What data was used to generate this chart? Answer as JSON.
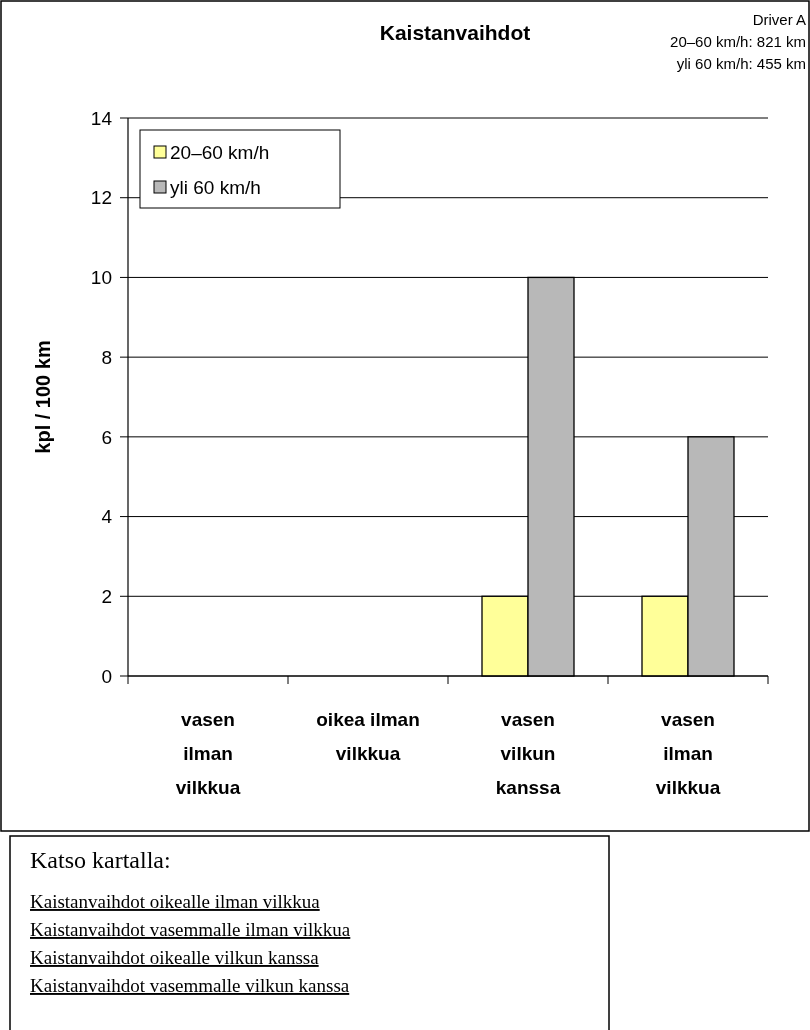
{
  "chart_data": {
    "type": "bar",
    "title": "Kaistanvaihdot",
    "ylabel": "kpl / 100 km",
    "categories": [
      "vasen ilman vilkkua",
      "oikea ilman vilkkua",
      "vasen vilkun kanssa",
      "vasen ilman vilkkua"
    ],
    "series": [
      {
        "name": "20–60 km/h",
        "color": "#ffff99",
        "values": [
          0,
          0,
          2,
          2
        ]
      },
      {
        "name": "yli 60 km/h",
        "color": "#b8b8b8",
        "values": [
          0,
          0,
          10,
          6
        ]
      }
    ],
    "ylim": [
      0,
      14
    ],
    "yticks": [
      0,
      2,
      4,
      6,
      8,
      10,
      12,
      14
    ],
    "grid": "y",
    "legend": "top left",
    "annotations": [
      "Driver A",
      "20–60 km/h: 821 km",
      "yli 60 km/h: 455 km",
      "Katso kartalla:",
      "Kaistanvaihdot oikealle ilman vilkkua",
      "Kaistanvaihdot vasemmalle ilman vilkkua",
      "Kaistanvaihdot oikealle vilkun kanssa",
      "Kaistanvaihdot vasemmalle vilkun kanssa"
    ]
  }
}
